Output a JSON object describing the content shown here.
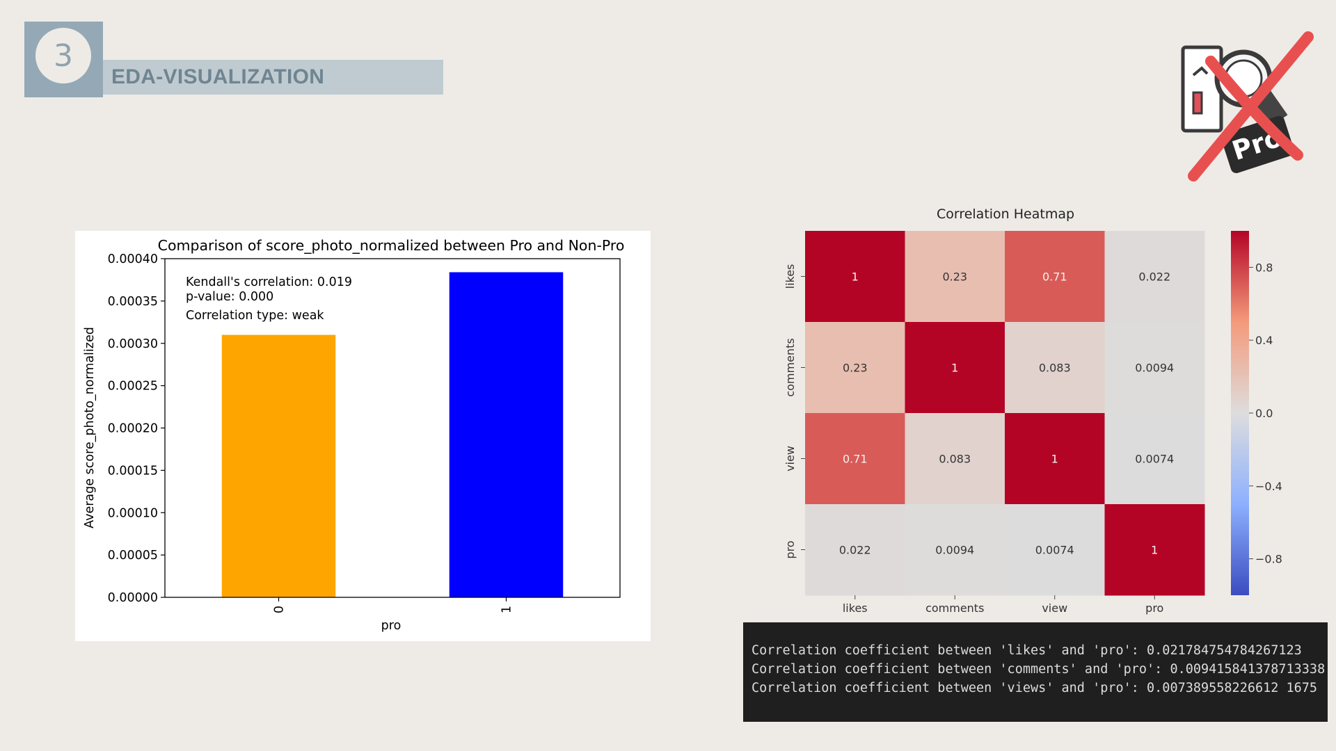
{
  "header": {
    "number": "3",
    "title": "EDA-VISUALIZATION"
  },
  "logo": {
    "icon": "pro-badge-crossed-icon",
    "badge_text": "Pro"
  },
  "colors": {
    "bar0": "#FFA500",
    "bar1": "#0000FF",
    "console_bg": "#1f1f1f"
  },
  "chart_data": [
    {
      "type": "bar",
      "title": "Comparison of score_photo_normalized between Pro and Non-Pro",
      "xlabel": "pro",
      "ylabel": "Average score_photo_normalized",
      "categories": [
        "0",
        "1"
      ],
      "values": [
        0.00031,
        0.000384
      ],
      "ylim": [
        0,
        0.0004
      ],
      "yticks": [
        "0.00000",
        "0.00005",
        "0.00010",
        "0.00015",
        "0.00020",
        "0.00025",
        "0.00030",
        "0.00035",
        "0.00040"
      ],
      "annotations": [
        "Kendall's correlation: 0.019",
        "p-value: 0.000",
        "Correlation type: weak"
      ],
      "grid": false
    },
    {
      "type": "heatmap",
      "title": "Correlation Heatmap",
      "rows": [
        "likes",
        "comments",
        "view",
        "pro"
      ],
      "columns": [
        "likes",
        "comments",
        "view",
        "pro"
      ],
      "values": [
        [
          1,
          0.23,
          0.71,
          0.022
        ],
        [
          0.23,
          1,
          0.083,
          0.0094
        ],
        [
          0.71,
          0.083,
          1,
          0.0074
        ],
        [
          0.022,
          0.0094,
          0.0074,
          1
        ]
      ],
      "labels": [
        [
          "1",
          "0.23",
          "0.71",
          "0.022"
        ],
        [
          "0.23",
          "1",
          "0.083",
          "0.0094"
        ],
        [
          "0.71",
          "0.083",
          "1",
          "0.0074"
        ],
        [
          "0.022",
          "0.0094",
          "0.0074",
          "1"
        ]
      ],
      "colormap": "coolwarm",
      "vlim": [
        -1,
        1
      ],
      "colorbar_ticks": [
        0.8,
        0.4,
        0.0,
        -0.4,
        -0.8
      ],
      "colorbar_tick_labels": [
        "0.8",
        "0.4",
        "0.0",
        "−0.4",
        "−0.8"
      ]
    }
  ],
  "console": {
    "lines": [
      "Correlation coefficient between 'likes' and 'pro': 0.021784754784267123",
      "Correlation coefficient between 'comments' and 'pro': 0.009415841378713338",
      "Correlation coefficient between 'views' and 'pro': 0.007389558226612 1675"
    ]
  }
}
